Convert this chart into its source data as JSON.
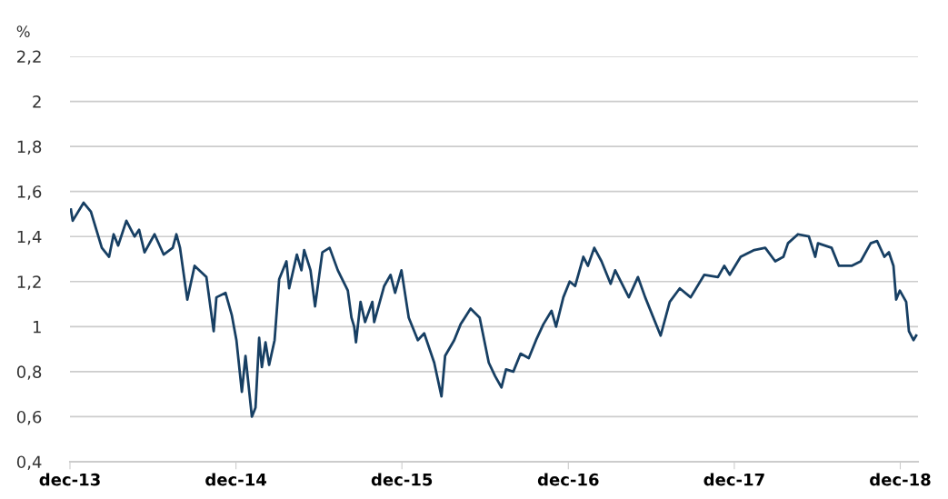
{
  "chart_data": {
    "type": "line",
    "ylabel": "%",
    "x": [
      "2013-12-03",
      "2013-12-07",
      "2013-12-31",
      "2014-01-16",
      "2014-02-09",
      "2014-02-25",
      "2014-03-07",
      "2014-03-17",
      "2014-04-04",
      "2014-04-22",
      "2014-05-02",
      "2014-05-14",
      "2014-06-05",
      "2014-06-25",
      "2014-07-15",
      "2014-07-23",
      "2014-07-31",
      "2014-08-16",
      "2014-09-01",
      "2014-09-27",
      "2014-10-13",
      "2014-10-19",
      "2014-11-08",
      "2014-11-22",
      "2014-12-02",
      "2014-12-14",
      "2014-12-22",
      "2015-01-05",
      "2015-01-13",
      "2015-01-21",
      "2015-01-27",
      "2015-02-04",
      "2015-02-12",
      "2015-02-24",
      "2015-03-06",
      "2015-03-22",
      "2015-03-28",
      "2015-04-14",
      "2015-04-24",
      "2015-04-30",
      "2015-05-14",
      "2015-05-24",
      "2015-06-09",
      "2015-06-25",
      "2015-07-13",
      "2015-08-04",
      "2015-08-12",
      "2015-08-18",
      "2015-08-22",
      "2015-09-01",
      "2015-09-11",
      "2015-09-27",
      "2015-10-01",
      "2015-10-23",
      "2015-11-06",
      "2015-11-16",
      "2015-11-30",
      "2015-12-16",
      "2016-01-05",
      "2016-01-19",
      "2016-02-10",
      "2016-02-26",
      "2016-03-05",
      "2016-03-25",
      "2016-04-08",
      "2016-04-30",
      "2016-05-20",
      "2016-06-09",
      "2016-06-23",
      "2016-07-07",
      "2016-07-17",
      "2016-08-02",
      "2016-08-18",
      "2016-09-05",
      "2016-09-21",
      "2016-10-07",
      "2016-10-25",
      "2016-11-04",
      "2016-11-20",
      "2016-12-04",
      "2016-12-16",
      "2017-01-03",
      "2017-01-13",
      "2017-01-27",
      "2017-02-12",
      "2017-03-04",
      "2017-03-14",
      "2017-04-13",
      "2017-05-03",
      "2017-05-19",
      "2017-06-22",
      "2017-07-12",
      "2017-08-03",
      "2017-08-27",
      "2017-09-26",
      "2017-10-26",
      "2017-11-09",
      "2017-11-21",
      "2017-12-15",
      "2018-01-14",
      "2018-02-07",
      "2018-03-01",
      "2018-03-19",
      "2018-03-29",
      "2018-04-20",
      "2018-05-14",
      "2018-05-28",
      "2018-06-03",
      "2018-07-03",
      "2018-07-19",
      "2018-08-16",
      "2018-09-05",
      "2018-09-27",
      "2018-10-11",
      "2018-10-27",
      "2018-11-06",
      "2018-11-16",
      "2018-11-22",
      "2018-11-30",
      "2018-12-14",
      "2018-12-20",
      "2018-12-30",
      "2019-01-05"
    ],
    "series": [
      {
        "color": "#173f63",
        "values": [
          1.52,
          1.47,
          1.55,
          1.51,
          1.35,
          1.31,
          1.41,
          1.36,
          1.47,
          1.4,
          1.43,
          1.33,
          1.41,
          1.32,
          1.35,
          1.41,
          1.35,
          1.12,
          1.27,
          1.22,
          0.98,
          1.13,
          1.15,
          1.05,
          0.94,
          0.71,
          0.87,
          0.6,
          0.64,
          0.95,
          0.82,
          0.93,
          0.83,
          0.94,
          1.21,
          1.29,
          1.17,
          1.32,
          1.25,
          1.34,
          1.25,
          1.09,
          1.33,
          1.35,
          1.25,
          1.16,
          1.04,
          1.0,
          0.93,
          1.11,
          1.02,
          1.11,
          1.02,
          1.18,
          1.23,
          1.15,
          1.25,
          1.04,
          0.94,
          0.97,
          0.84,
          0.69,
          0.87,
          0.94,
          1.01,
          1.08,
          1.04,
          0.84,
          0.78,
          0.73,
          0.81,
          0.8,
          0.88,
          0.86,
          0.94,
          1.01,
          1.07,
          1.0,
          1.13,
          1.2,
          1.18,
          1.31,
          1.27,
          1.35,
          1.29,
          1.19,
          1.25,
          1.13,
          1.22,
          1.13,
          0.96,
          1.11,
          1.17,
          1.13,
          1.23,
          1.22,
          1.27,
          1.23,
          1.31,
          1.34,
          1.35,
          1.29,
          1.31,
          1.37,
          1.41,
          1.4,
          1.31,
          1.37,
          1.35,
          1.27,
          1.27,
          1.29,
          1.37,
          1.38,
          1.31,
          1.33,
          1.27,
          1.12,
          1.16,
          1.11,
          0.98,
          0.94,
          0.96
        ]
      }
    ],
    "xlim": [
      "2013-12-01",
      "2019-01-09"
    ],
    "xticks": [
      {
        "value": "2013-12-01",
        "label": "dec-13"
      },
      {
        "value": "2014-12-01",
        "label": "dec-14"
      },
      {
        "value": "2015-12-01",
        "label": "dec-15"
      },
      {
        "value": "2016-12-01",
        "label": "dec-16"
      },
      {
        "value": "2017-12-01",
        "label": "dec-17"
      },
      {
        "value": "2018-12-01",
        "label": "dec-18"
      }
    ],
    "ylim": [
      0.4,
      2.2
    ],
    "yticks": [
      {
        "value": 0.4,
        "label": "0,4"
      },
      {
        "value": 0.6,
        "label": "0,6"
      },
      {
        "value": 0.8,
        "label": "0,8"
      },
      {
        "value": 1,
        "label": "1"
      },
      {
        "value": 1.2,
        "label": "1,2"
      },
      {
        "value": 1.4,
        "label": "1,4"
      },
      {
        "value": 1.6,
        "label": "1,6"
      },
      {
        "value": 1.8,
        "label": "1,8"
      },
      {
        "value": 2,
        "label": "2"
      },
      {
        "value": 2.2,
        "label": "2,2"
      }
    ],
    "grid": "y",
    "legend": false,
    "marker": "none",
    "line_style": "solid"
  }
}
